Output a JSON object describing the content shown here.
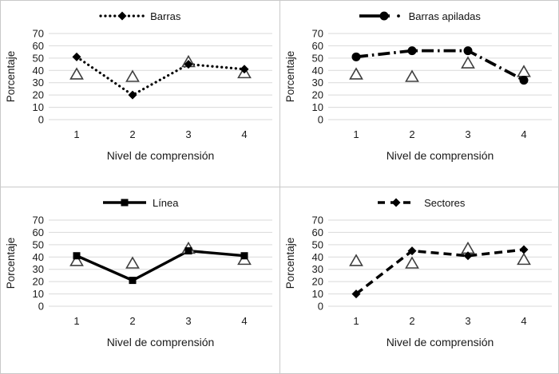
{
  "page": {
    "background": "#ffffff",
    "border_color": "#c9c9c9",
    "gridline_color": "#d9d9d9",
    "text_color": "#1a1a1a",
    "series_color": "#000000",
    "triangle_outline_color": "#3f3f3f",
    "triangle_fill": "#ffffff"
  },
  "axes": {
    "y_title": "Porcentaje",
    "x_title": "Nivel de comprensión",
    "y_tick_labels": [
      "70",
      "60",
      "50",
      "40",
      "30",
      "20",
      "10",
      "0"
    ],
    "x_tick_labels": [
      "1",
      "2",
      "3",
      "4"
    ],
    "ylim": [
      0,
      70
    ]
  },
  "chart_data": [
    {
      "type": "line",
      "legend": "Barras",
      "line_style": "dotted",
      "marker": "diamond",
      "x": [
        1,
        2,
        3,
        4
      ],
      "xlabel": "Nivel de comprensión",
      "ylabel": "Porcentaje",
      "ylim": [
        0,
        70
      ],
      "grid": true,
      "legend_position": "top-center",
      "series": [
        {
          "name": "Barras",
          "marker": "diamond",
          "values": [
            51,
            20,
            45,
            41
          ]
        },
        {
          "name": "",
          "marker": "open-triangle",
          "values": [
            37,
            35,
            47,
            38
          ]
        }
      ]
    },
    {
      "type": "line",
      "legend": "Barras apiladas",
      "line_style": "dashdot",
      "marker": "circle",
      "x": [
        1,
        2,
        3,
        4
      ],
      "xlabel": "Nivel de comprensión",
      "ylabel": "Porcentaje",
      "ylim": [
        0,
        70
      ],
      "grid": true,
      "legend_position": "top-center",
      "series": [
        {
          "name": "Barras apiladas",
          "marker": "circle",
          "values": [
            51,
            56,
            56,
            32
          ]
        },
        {
          "name": "",
          "marker": "open-triangle",
          "values": [
            37,
            35,
            46,
            39
          ]
        }
      ]
    },
    {
      "type": "line",
      "legend": "Línea",
      "line_style": "solid",
      "marker": "square",
      "x": [
        1,
        2,
        3,
        4
      ],
      "xlabel": "Nivel de comprensión",
      "ylabel": "Porcentaje",
      "ylim": [
        0,
        70
      ],
      "grid": true,
      "legend_position": "top-center",
      "series": [
        {
          "name": "Línea",
          "marker": "square",
          "values": [
            41,
            21,
            45,
            41
          ]
        },
        {
          "name": "",
          "marker": "open-triangle",
          "values": [
            37,
            35,
            47,
            38
          ]
        }
      ]
    },
    {
      "type": "line",
      "legend": "Sectores",
      "line_style": "dashed",
      "marker": "diamond",
      "x": [
        1,
        2,
        3,
        4
      ],
      "xlabel": "Nivel de comprensión",
      "ylabel": "Porcentaje",
      "ylim": [
        0,
        70
      ],
      "grid": true,
      "legend_position": "top-center",
      "series": [
        {
          "name": "Sectores",
          "marker": "diamond",
          "values": [
            10,
            45,
            41,
            46
          ]
        },
        {
          "name": "",
          "marker": "open-triangle",
          "values": [
            37,
            35,
            47,
            38
          ]
        }
      ]
    }
  ]
}
